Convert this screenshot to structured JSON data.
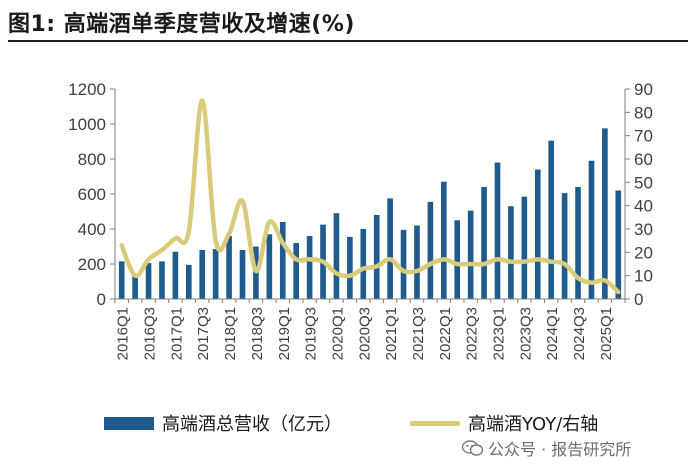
{
  "title": "图1:  高端酒单季度营收及增速(%)",
  "watermark": {
    "text": "公众号 · 报告研究所",
    "icon": "wechat-icon"
  },
  "chart_data": {
    "type": "bar",
    "quarters": [
      "2016Q1",
      "2016Q2",
      "2016Q3",
      "2016Q4",
      "2017Q1",
      "2017Q2",
      "2017Q3",
      "2017Q4",
      "2018Q1",
      "2018Q2",
      "2018Q3",
      "2018Q4",
      "2019Q1",
      "2019Q2",
      "2019Q3",
      "2019Q4",
      "2020Q1",
      "2020Q2",
      "2020Q3",
      "2020Q4",
      "2021Q1",
      "2021Q2",
      "2021Q3",
      "2021Q4",
      "2022Q1",
      "2022Q2",
      "2022Q3",
      "2022Q4",
      "2023Q1",
      "2023Q2",
      "2023Q3",
      "2023Q4",
      "2024Q1",
      "2024Q2",
      "2024Q3",
      "2024Q4",
      "2025Q1",
      "2025Q2"
    ],
    "tick_labels": [
      "2016Q1",
      "2016Q3",
      "2017Q1",
      "2017Q3",
      "2018Q1",
      "2018Q3",
      "2019Q1",
      "2019Q3",
      "2020Q1",
      "2020Q3",
      "2021Q1",
      "2021Q3",
      "2022Q1",
      "2022Q3",
      "2023Q1",
      "2023Q3",
      "2024Q1",
      "2024Q3",
      "2025Q1"
    ],
    "series": [
      {
        "name": "高端酒总营收（亿元）",
        "axis": "left",
        "color": "#1f5b8c",
        "values": [
          215,
          135,
          205,
          215,
          270,
          195,
          280,
          285,
          360,
          280,
          300,
          370,
          440,
          320,
          360,
          425,
          490,
          355,
          400,
          480,
          575,
          395,
          420,
          555,
          670,
          450,
          505,
          640,
          780,
          530,
          585,
          740,
          905,
          605,
          640,
          790,
          975,
          620
        ]
      },
      {
        "name": "高端酒YOY/右轴",
        "axis": "right",
        "color": "#d9cb7a",
        "values": [
          23,
          10,
          17,
          21,
          26,
          29,
          85,
          25,
          28,
          42,
          12,
          33,
          24,
          17,
          17,
          16,
          11,
          10,
          13,
          14,
          17,
          12,
          12,
          15,
          17,
          15,
          15,
          15,
          17,
          16,
          16,
          17,
          16,
          15,
          9,
          7,
          8,
          3
        ]
      }
    ],
    "y_left": {
      "min": 0,
      "max": 1200,
      "ticks": [
        0,
        200,
        400,
        600,
        800,
        1000,
        1200
      ]
    },
    "y_right": {
      "min": 0,
      "max": 90,
      "ticks": [
        0,
        10,
        20,
        30,
        40,
        50,
        60,
        70,
        80,
        90
      ]
    },
    "legend_position": "bottom",
    "grid": false
  }
}
